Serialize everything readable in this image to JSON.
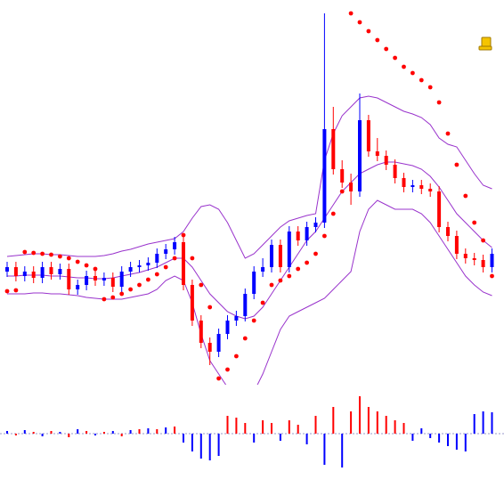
{
  "chart_data": [
    {
      "type": "candlestick",
      "ylim": [
        0,
        440
      ],
      "up_color": "#0000ff",
      "down_color": "#ff0000",
      "band_color": "#9933cc",
      "sar_color": "#ff0000",
      "open": [
        135,
        140,
        130,
        135,
        128,
        140,
        132,
        138,
        115,
        120,
        130,
        125,
        128,
        118,
        135,
        140,
        142,
        145,
        155,
        160,
        168,
        120,
        80,
        55,
        45,
        65,
        80,
        85,
        110,
        135,
        140,
        165,
        140,
        180,
        170,
        185,
        190,
        295,
        250,
        235,
        225,
        305,
        270,
        265,
        255,
        240,
        230,
        232,
        228,
        225,
        185,
        175,
        155,
        150,
        148,
        140
      ],
      "high": [
        146,
        146,
        141,
        141,
        146,
        146,
        144,
        144,
        126,
        136,
        136,
        134,
        134,
        141,
        146,
        148,
        151,
        161,
        166,
        174,
        174,
        126,
        86,
        61,
        71,
        86,
        91,
        116,
        141,
        150,
        171,
        171,
        186,
        186,
        191,
        196,
        425,
        320,
        260,
        245,
        335,
        311,
        285,
        271,
        261,
        246,
        238,
        238,
        234,
        231,
        191,
        181,
        161,
        156,
        154,
        161
      ],
      "low": [
        129,
        124,
        124,
        122,
        122,
        126,
        126,
        109,
        109,
        114,
        119,
        119,
        112,
        112,
        129,
        134,
        136,
        139,
        149,
        154,
        114,
        74,
        49,
        30,
        39,
        59,
        74,
        79,
        104,
        129,
        134,
        134,
        134,
        164,
        164,
        179,
        184,
        244,
        229,
        210,
        219,
        264,
        259,
        249,
        234,
        224,
        224,
        222,
        219,
        179,
        169,
        149,
        144,
        142,
        134,
        134
      ],
      "close": [
        140,
        130,
        135,
        128,
        140,
        132,
        138,
        115,
        120,
        130,
        125,
        128,
        118,
        135,
        140,
        142,
        145,
        155,
        160,
        168,
        120,
        80,
        55,
        45,
        65,
        80,
        85,
        110,
        135,
        140,
        165,
        140,
        180,
        170,
        185,
        190,
        295,
        250,
        235,
        225,
        305,
        270,
        265,
        255,
        240,
        230,
        232,
        228,
        225,
        185,
        175,
        155,
        150,
        148,
        140,
        155
      ],
      "upper": [
        152,
        153,
        154,
        155,
        155,
        154,
        154,
        153,
        152,
        152,
        152,
        153,
        155,
        158,
        160,
        163,
        166,
        168,
        170,
        172,
        180,
        195,
        208,
        210,
        205,
        190,
        170,
        150,
        155,
        165,
        175,
        185,
        192,
        195,
        198,
        200,
        260,
        290,
        310,
        320,
        330,
        332,
        330,
        325,
        320,
        315,
        312,
        308,
        300,
        285,
        278,
        275,
        260,
        245,
        232,
        228
      ],
      "middle": [
        130,
        130,
        131,
        131,
        131,
        130,
        130,
        129,
        128,
        128,
        127,
        127,
        128,
        130,
        132,
        134,
        137,
        140,
        145,
        150,
        150,
        140,
        125,
        110,
        100,
        90,
        85,
        82,
        85,
        95,
        110,
        125,
        140,
        155,
        170,
        180,
        195,
        210,
        225,
        235,
        245,
        250,
        255,
        258,
        258,
        256,
        254,
        250,
        242,
        230,
        215,
        200,
        190,
        180,
        170,
        162
      ],
      "lower": [
        110,
        110,
        110,
        111,
        111,
        110,
        110,
        109,
        108,
        106,
        105,
        104,
        104,
        104,
        106,
        108,
        110,
        115,
        125,
        130,
        125,
        100,
        65,
        35,
        20,
        5,
        -5,
        -10,
        0,
        20,
        45,
        70,
        85,
        90,
        95,
        100,
        105,
        115,
        125,
        135,
        180,
        205,
        215,
        210,
        205,
        205,
        205,
        200,
        190,
        175,
        160,
        145,
        130,
        120,
        112,
        108
      ],
      "sar": [
        113,
        114,
        157,
        156,
        155,
        154,
        152,
        150,
        146,
        142,
        138,
        104,
        106,
        110,
        115,
        120,
        126,
        132,
        140,
        150,
        176,
        150,
        120,
        95,
        15,
        25,
        40,
        60,
        80,
        100,
        120,
        125,
        130,
        138,
        145,
        155,
        175,
        200,
        225,
        425,
        415,
        405,
        395,
        385,
        375,
        365,
        358,
        350,
        342,
        325,
        290,
        255,
        220,
        190,
        170,
        130
      ]
    },
    {
      "type": "bar",
      "ylim": [
        -60,
        60
      ],
      "values": [
        3,
        -2,
        4,
        2,
        -3,
        3,
        2,
        -4,
        5,
        3,
        -2,
        2,
        3,
        -3,
        4,
        5,
        6,
        5,
        7,
        8,
        -10,
        -20,
        -28,
        -30,
        -25,
        20,
        18,
        12,
        -10,
        15,
        12,
        -8,
        15,
        10,
        -12,
        20,
        -35,
        30,
        -38,
        25,
        42,
        30,
        25,
        20,
        15,
        12,
        -8,
        6,
        -5,
        -10,
        -14,
        -18,
        -20,
        22,
        25,
        24
      ],
      "colors": [
        "#0000ff",
        "#ff0000",
        "#0000ff",
        "#ff0000",
        "#0000ff",
        "#ff0000",
        "#0000ff",
        "#ff0000",
        "#0000ff",
        "#ff0000",
        "#0000ff",
        "#ff0000",
        "#0000ff",
        "#ff0000",
        "#0000ff",
        "#ff0000",
        "#0000ff",
        "#ff0000",
        "#0000ff",
        "#ff0000",
        "#0000ff",
        "#0000ff",
        "#0000ff",
        "#0000ff",
        "#0000ff",
        "#ff0000",
        "#ff0000",
        "#ff0000",
        "#0000ff",
        "#ff0000",
        "#ff0000",
        "#0000ff",
        "#ff0000",
        "#ff0000",
        "#0000ff",
        "#ff0000",
        "#0000ff",
        "#ff0000",
        "#0000ff",
        "#ff0000",
        "#ff0000",
        "#ff0000",
        "#ff0000",
        "#ff0000",
        "#ff0000",
        "#ff0000",
        "#0000ff",
        "#0000ff",
        "#0000ff",
        "#0000ff",
        "#0000ff",
        "#0000ff",
        "#0000ff",
        "#0000ff",
        "#0000ff",
        "#0000ff"
      ]
    }
  ]
}
